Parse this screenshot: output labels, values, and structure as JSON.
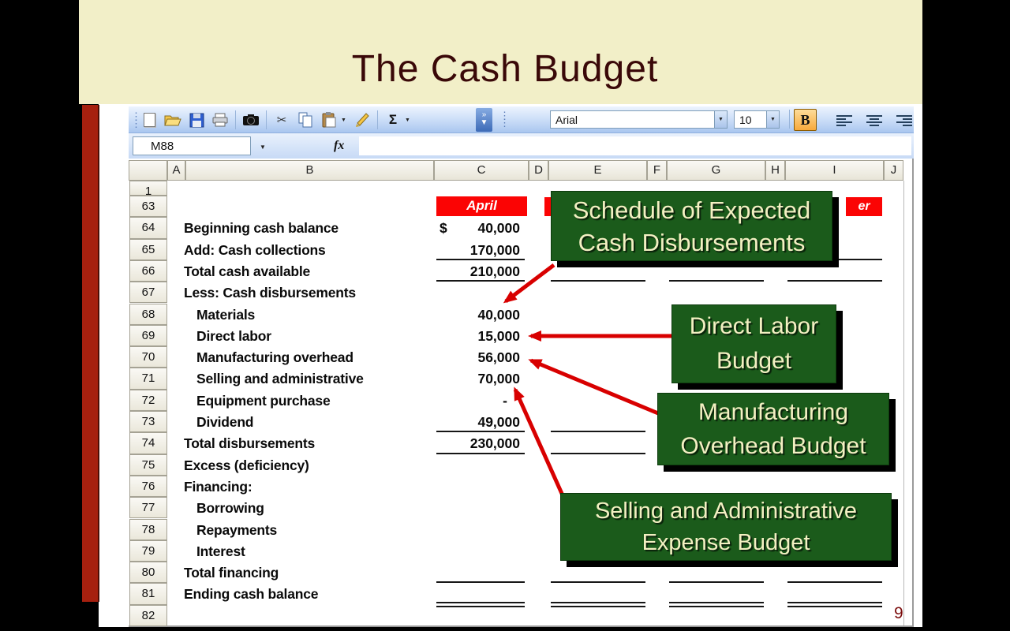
{
  "slide": {
    "title": "The Cash Budget",
    "page_number": "9"
  },
  "toolbar": {
    "font_name": "Arial",
    "font_size": "10",
    "bold_label": "B",
    "sum_label": "Σ",
    "options_chevron": "»",
    "icons": [
      "drag-handle",
      "new-document",
      "open-folder",
      "save",
      "print",
      "camera",
      "cut",
      "copy",
      "paste",
      "format-painter",
      "autosum",
      "toolbar-options",
      "font-combo",
      "size-combo",
      "bold",
      "align-left",
      "align-center",
      "align-right"
    ]
  },
  "formula_bar": {
    "cell_reference": "M88",
    "fx_label": "fx"
  },
  "sheet": {
    "columns": [
      "A",
      "B",
      "C",
      "D",
      "E",
      "F",
      "G",
      "H",
      "I",
      "J"
    ],
    "first_row_label": "1",
    "month_header": "April",
    "partial_header": "er",
    "rows": [
      {
        "num": "63",
        "label": "",
        "value": ""
      },
      {
        "num": "64",
        "label": "Beginning cash balance",
        "value": "40,000",
        "dollar": "$"
      },
      {
        "num": "65",
        "label": "Add: Cash collections",
        "value": "170,000",
        "line": "single"
      },
      {
        "num": "66",
        "label": "Total cash available",
        "value": "210,000",
        "line": "single"
      },
      {
        "num": "67",
        "label": "Less: Cash disbursements",
        "value": ""
      },
      {
        "num": "68",
        "label": "Materials",
        "value": "40,000",
        "indent": 1
      },
      {
        "num": "69",
        "label": "Direct labor",
        "value": "15,000",
        "indent": 1
      },
      {
        "num": "70",
        "label": "Manufacturing overhead",
        "value": "56,000",
        "indent": 1
      },
      {
        "num": "71",
        "label": "Selling and administrative",
        "value": "70,000",
        "indent": 1
      },
      {
        "num": "72",
        "label": "Equipment purchase",
        "value": "-",
        "indent": 1,
        "dash": true
      },
      {
        "num": "73",
        "label": "Dividend",
        "value": "49,000",
        "indent": 1,
        "line": "single"
      },
      {
        "num": "74",
        "label": "Total disbursements",
        "value": "230,000",
        "line": "single"
      },
      {
        "num": "75",
        "label": "Excess (deficiency)",
        "value": ""
      },
      {
        "num": "76",
        "label": "Financing:",
        "value": ""
      },
      {
        "num": "77",
        "label": "Borrowing",
        "value": "",
        "indent": 1
      },
      {
        "num": "78",
        "label": "Repayments",
        "value": "",
        "indent": 1
      },
      {
        "num": "79",
        "label": "Interest",
        "value": "",
        "indent": 1
      },
      {
        "num": "80",
        "label": "Total financing",
        "value": "",
        "line": "single"
      },
      {
        "num": "81",
        "label": "Ending cash balance",
        "value": "",
        "line": "double"
      },
      {
        "num": "82",
        "label": "",
        "value": ""
      }
    ]
  },
  "callouts": [
    {
      "line1": "Schedule of Expected",
      "line2": "Cash Disbursements"
    },
    {
      "line1": "Direct Labor",
      "line2": "Budget"
    },
    {
      "line1": "Manufacturing",
      "line2": "Overhead Budget"
    },
    {
      "line1": "Selling and Administrative",
      "line2": "Expense Budget"
    }
  ],
  "colors": {
    "banner_cream": "#F2EFC8",
    "title_maroon": "#3A0808",
    "accent_bar_red": "#A6200F",
    "header_red": "#FB0404",
    "callout_green": "#1B5B1B",
    "callout_text": "#F3F0C2",
    "arrow_red": "#D80000",
    "bold_button_orange": "#F8A93C"
  }
}
